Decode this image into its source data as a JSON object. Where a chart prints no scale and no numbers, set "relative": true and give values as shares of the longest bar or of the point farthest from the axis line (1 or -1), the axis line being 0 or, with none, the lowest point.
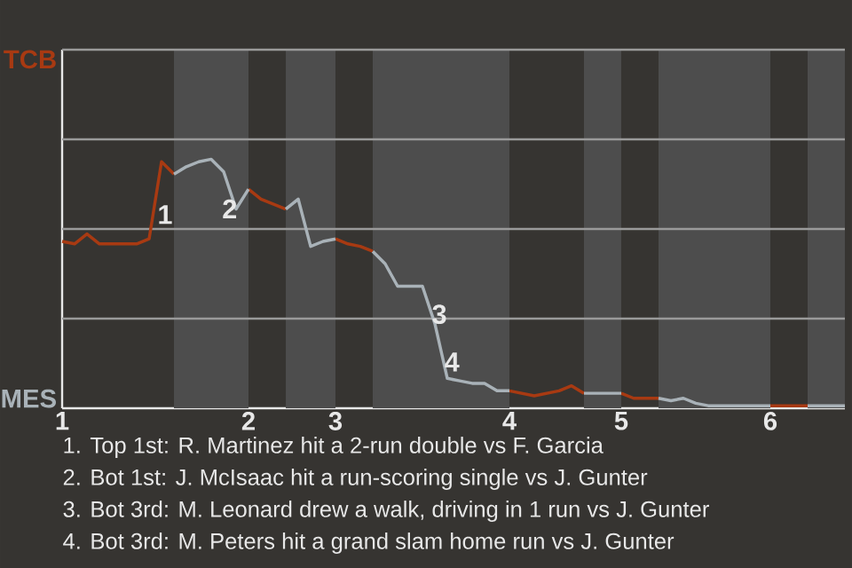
{
  "chart_data": {
    "type": "line",
    "relative": true,
    "categories": [
      "1",
      null,
      null,
      null,
      null,
      null,
      null,
      null,
      null,
      null,
      null,
      null,
      null,
      null,
      null,
      "2",
      null,
      null,
      null,
      null,
      null,
      null,
      "3",
      null,
      null,
      null,
      null,
      null,
      null,
      null,
      null,
      null,
      null,
      null,
      null,
      null,
      "4",
      null,
      null,
      null,
      null,
      null,
      null,
      null,
      null,
      "5",
      null,
      null,
      null,
      null,
      null,
      null,
      null,
      null,
      null,
      null,
      null,
      "6",
      null,
      null,
      null,
      null,
      null,
      null
    ],
    "series": [
      {
        "color": "#a83a12",
        "values": [
          0.67,
          0.66,
          0.7,
          0.66,
          0.66,
          0.66,
          0.66,
          0.68,
          0.99,
          0.94,
          null,
          null,
          null,
          null,
          null,
          0.88,
          0.84,
          0.82,
          0.8,
          null,
          null,
          null,
          0.68,
          0.66,
          0.65,
          0.63,
          null,
          null,
          null,
          null,
          null,
          null,
          null,
          null,
          null,
          null,
          0.07,
          0.06,
          0.05,
          0.06,
          0.07,
          0.09,
          0.06,
          null,
          null,
          0.06,
          0.04,
          0.04,
          0.04,
          null,
          null,
          null,
          null,
          null,
          null,
          null,
          null,
          0.01,
          0.01,
          0.01,
          0.01,
          null,
          null,
          null
        ]
      },
      {
        "color": "#a9b2b8",
        "values": [
          null,
          null,
          null,
          null,
          null,
          null,
          null,
          null,
          null,
          0.94,
          0.97,
          0.99,
          1,
          0.95,
          0.8,
          0.88,
          null,
          null,
          0.8,
          0.84,
          0.65,
          0.67,
          0.68,
          null,
          null,
          0.63,
          0.58,
          0.49,
          0.49,
          0.49,
          0.34,
          0.12,
          0.11,
          0.1,
          0.1,
          0.07,
          0.07,
          null,
          null,
          null,
          null,
          null,
          0.06,
          0.06,
          0.06,
          0.06,
          null,
          null,
          0.04,
          0.03,
          0.04,
          0.02,
          0.01,
          0.01,
          0.01,
          0.01,
          0.01,
          0.01,
          null,
          null,
          0.01,
          0.01,
          0.01,
          0.01
        ]
      }
    ],
    "ref_lines": [
      {
        "axis": "y",
        "value": 0.36,
        "color": "#9a9a9a"
      },
      {
        "axis": "y",
        "value": 0.72,
        "color": "#9a9a9a"
      },
      {
        "axis": "y",
        "value": 1.08,
        "color": "#9a9a9a"
      },
      {
        "axis": "y",
        "value": 1.44,
        "color": "#9a9a9a"
      }
    ],
    "annotations": [
      "1",
      "2",
      "3",
      "4",
      "TCB",
      "MES",
      "1. Top 1st: R. Martinez hit a 2-run double vs F. Garcia",
      "2. Bot 1st: J. McIsaac hit a run-scoring single vs J. Gunter",
      "3. Bot 3rd: M. Leonard drew a walk, driving in 1 run vs J. Gunter",
      "4. Bot 3rd: M. Peters hit a grand slam home run vs J. Gunter"
    ]
  }
}
